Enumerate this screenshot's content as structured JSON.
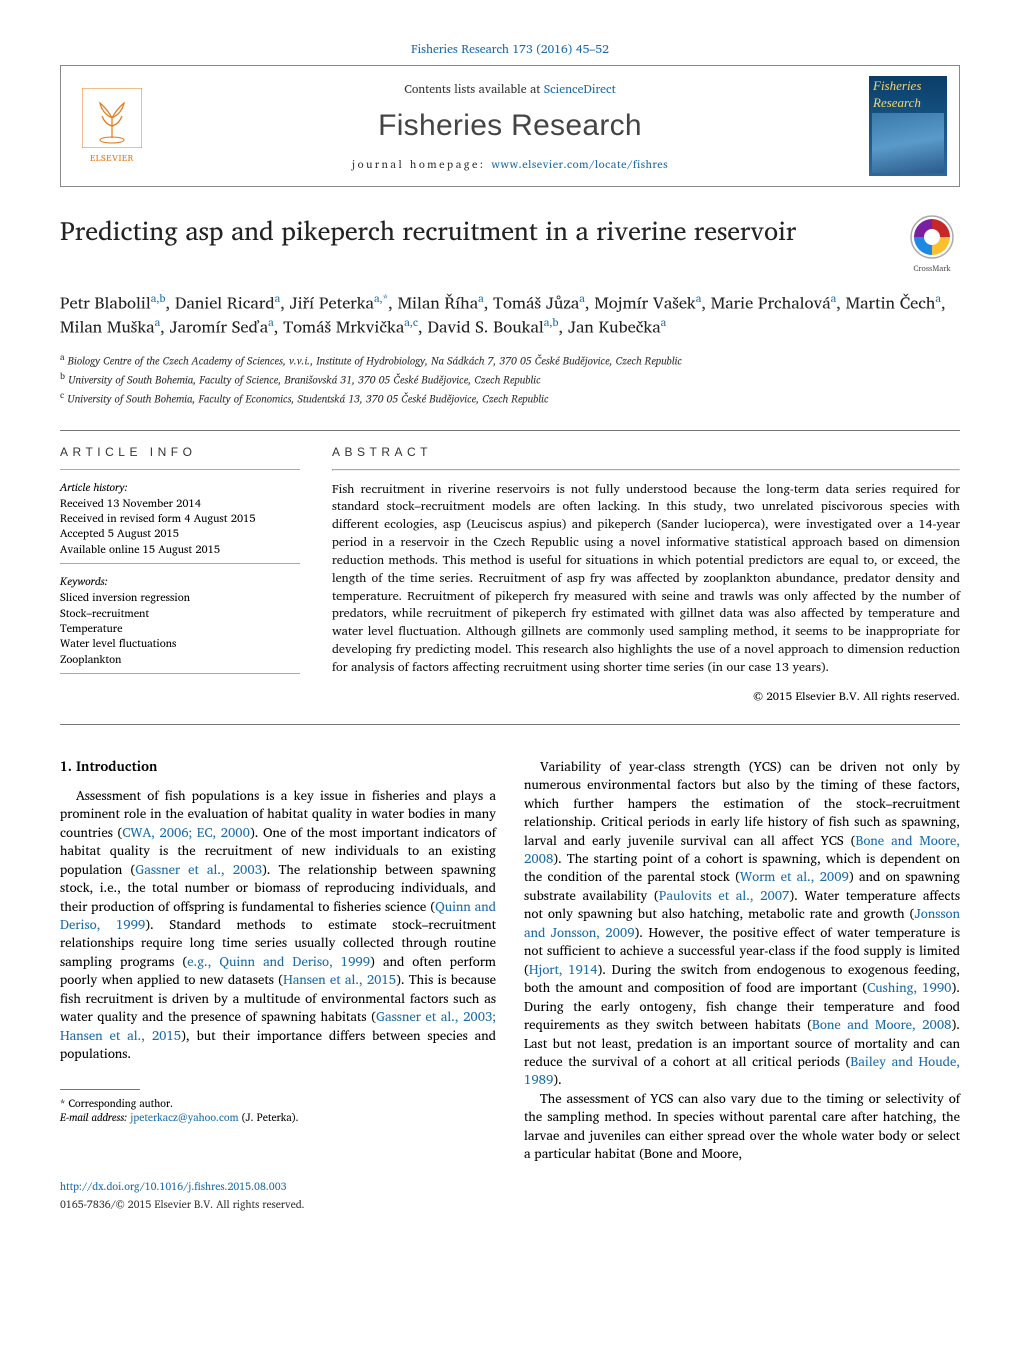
{
  "journal_header": {
    "citation": "Fisheries Research 173 (2016) 45–52",
    "contents_prefix": "Contents lists available at ",
    "contents_link": "ScienceDirect",
    "journal_name": "Fisheries Research",
    "homepage_prefix": "journal homepage: ",
    "homepage_url": "www.elsevier.com/locate/fishres",
    "publisher_logo_text": "ELSEVIER",
    "cover_title_1": "Fisheries",
    "cover_title_2": "Research"
  },
  "crossmark_label": "CrossMark",
  "article": {
    "title": "Predicting asp and pikeperch recruitment in a riverine reservoir",
    "authors_html": "Petr Blabolil<sup>a,b</sup>, Daniel Ricard<sup>a</sup>, Jiří Peterka<sup>a,*</sup>, Milan Říha<sup>a</sup>, Tomáš Jůza<sup>a</sup>, Mojmír Vašek<sup>a</sup>, Marie Prchalová<sup>a</sup>, Martin Čech<sup>a</sup>, Milan Muška<sup>a</sup>, Jaromír Seďa<sup>a</sup>, Tomáš Mrkvička<sup>a,c</sup>, David S. Boukal<sup>a,b</sup>, Jan Kubečka<sup>a</sup>",
    "affiliations": [
      {
        "sup": "a",
        "text": "Biology Centre of the Czech Academy of Sciences, v.v.i., Institute of Hydrobiology, Na Sádkách 7, 370 05 České Budějovice, Czech Republic"
      },
      {
        "sup": "b",
        "text": "University of South Bohemia, Faculty of Science, Branišovská 31, 370 05 České Budějovice, Czech Republic"
      },
      {
        "sup": "c",
        "text": "University of South Bohemia, Faculty of Economics, Studentská 13, 370 05 České Budějovice, Czech Republic"
      }
    ]
  },
  "info": {
    "heading": "article info",
    "history_label": "Article history:",
    "history": [
      "Received 13 November 2014",
      "Received in revised form 4 August 2015",
      "Accepted 5 August 2015",
      "Available online 15 August 2015"
    ],
    "keywords_label": "Keywords:",
    "keywords": [
      "Sliced inversion regression",
      "Stock–recruitment",
      "Temperature",
      "Water level fluctuations",
      "Zooplankton"
    ]
  },
  "abstract": {
    "heading": "abstract",
    "text": "Fish recruitment in riverine reservoirs is not fully understood because the long-term data series required for standard stock–recruitment models are often lacking. In this study, two unrelated piscivorous species with different ecologies, asp (Leuciscus aspius) and pikeperch (Sander lucioperca), were investigated over a 14-year period in a reservoir in the Czech Republic using a novel informative statistical approach based on dimension reduction methods. This method is useful for situations in which potential predictors are equal to, or exceed, the length of the time series. Recruitment of asp fry was affected by zooplankton abundance, predator density and temperature. Recruitment of pikeperch fry measured with seine and trawls was only affected by the number of predators, while recruitment of pikeperch fry estimated with gillnet data was also affected by temperature and water level fluctuation. Although gillnets are commonly used sampling method, it seems to be inappropriate for developing fry predicting model. This research also highlights the use of a novel approach to dimension reduction for analysis of factors affecting recruitment using shorter time series (in our case 13 years).",
    "copyright": "© 2015 Elsevier B.V. All rights reserved."
  },
  "body": {
    "section1_heading": "1.  Introduction",
    "col1_p1": "Assessment of fish populations is a key issue in fisheries and plays a prominent role in the evaluation of habitat quality in water bodies in many countries (CWA, 2006; EC, 2000). One of the most important indicators of habitat quality is the recruitment of new individuals to an existing population (Gassner et al., 2003). The relationship between spawning stock, i.e., the total number or biomass of reproducing individuals, and their production of offspring is fundamental to fisheries science (Quinn and Deriso, 1999). Standard methods to estimate stock–recruitment relationships require long time series usually collected through routine sampling programs (e.g., Quinn and Deriso, 1999) and often perform poorly when applied to new datasets (Hansen et al., 2015). This is because fish recruitment is driven by a multitude of environmental factors such as water quality and the presence of spawning habitats (Gassner et al., 2003; Hansen et al., 2015), but their importance differs between species and populations.",
    "col2_p1": "Variability of year-class strength (YCS) can be driven not only by numerous environmental factors but also by the timing of these factors, which further hampers the estimation of the stock–recruitment relationship. Critical periods in early life history of fish such as spawning, larval and early juvenile survival can all affect YCS (Bone and Moore, 2008). The starting point of a cohort is spawning, which is dependent on the condition of the parental stock (Worm et al., 2009) and on spawning substrate availability (Paulovits et al., 2007). Water temperature affects not only spawning but also hatching, metabolic rate and growth (Jonsson and Jonsson, 2009). However, the positive effect of water temperature is not sufficient to achieve a successful year-class if the food supply is limited (Hjort, 1914). During the switch from endogenous to exogenous feeding, both the amount and composition of food are important (Cushing, 1990). During the early ontogeny, fish change their temperature and food requirements as they switch between habitats (Bone and Moore, 2008). Last but not least, predation is an important source of mortality and can reduce the survival of a cohort at all critical periods (Bailey and Houde, 1989).",
    "col2_p2": "The assessment of YCS can also vary due to the timing or selectivity of the sampling method. In species without parental care after hatching, the larvae and juveniles can either spread over the whole water body or select a particular habitat (Bone and Moore,"
  },
  "footnote": {
    "corr_label": "* Corresponding author.",
    "email_label": "E-mail address: ",
    "email": "jpeterkacz@yahoo.com",
    "email_suffix": " (J. Peterka)."
  },
  "footer": {
    "doi": "http://dx.doi.org/10.1016/j.fishres.2015.08.003",
    "rights": "0165-7836/© 2015 Elsevier B.V. All rights reserved."
  },
  "colors": {
    "link": "#1a6ba8",
    "elsevier_orange": "#e67817",
    "text": "#000000",
    "rule": "#777777"
  }
}
